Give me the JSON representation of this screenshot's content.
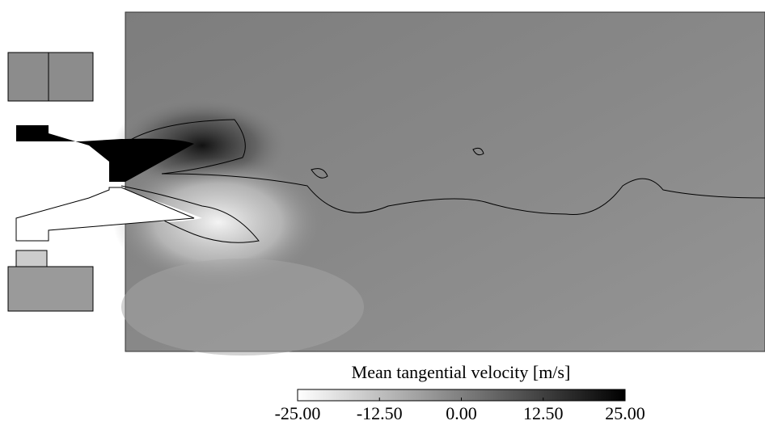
{
  "chart_data": {
    "type": "contour",
    "colorbar": {
      "label": "Mean tangential velocity [m/s]",
      "lim": [
        -25,
        25
      ],
      "colors": [
        "#ffffff",
        "#000000"
      ],
      "ticks": [
        {
          "value": -25,
          "label": "-25.00"
        },
        {
          "value": -12.5,
          "label": "-12.50"
        },
        {
          "value": 0,
          "label": "0.00"
        },
        {
          "value": 12.5,
          "label": "12.50"
        },
        {
          "value": 25,
          "label": "25.00"
        }
      ]
    }
  }
}
